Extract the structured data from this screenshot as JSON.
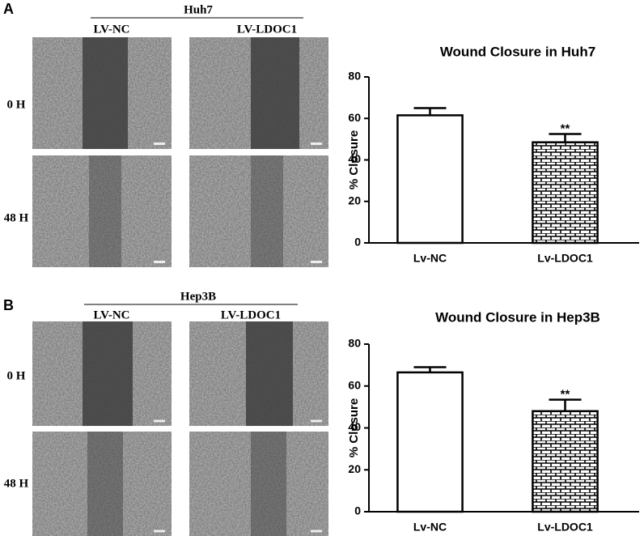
{
  "figure": {
    "panels": [
      {
        "letter": "A",
        "cell_line": "Huh7",
        "columns": [
          "LV-NC",
          "LV-LDOC1"
        ],
        "rows": [
          "0 H",
          "48 H"
        ]
      },
      {
        "letter": "B",
        "cell_line": "Hep3B",
        "columns": [
          "LV-NC",
          "LV-LDOC1"
        ],
        "rows": [
          "0 H",
          "48 H"
        ]
      }
    ]
  },
  "chart_data": [
    {
      "type": "bar",
      "title": "Wound Closure in Huh7",
      "ylabel": "% Closure",
      "categories": [
        "Lv-NC",
        "Lv-LDOC1"
      ],
      "values": [
        61.5,
        48.5
      ],
      "errors": [
        3.5,
        4
      ],
      "value_annotations": [
        null,
        "**"
      ],
      "bar_patterns": [
        "none",
        "brick"
      ],
      "color": "#000000",
      "ylim": [
        0,
        80
      ],
      "yticks": [
        0,
        20,
        40,
        60,
        80
      ]
    },
    {
      "type": "bar",
      "title": "Wound Closure in Hep3B",
      "ylabel": "% Closure",
      "categories": [
        "Lv-NC",
        "Lv-LDOC1"
      ],
      "values": [
        66.5,
        48
      ],
      "errors": [
        2.5,
        5.5
      ],
      "value_annotations": [
        null,
        "**"
      ],
      "bar_patterns": [
        "none",
        "brick"
      ],
      "color": "#000000",
      "ylim": [
        0,
        80
      ],
      "yticks": [
        0,
        20,
        40,
        60,
        80
      ]
    }
  ]
}
